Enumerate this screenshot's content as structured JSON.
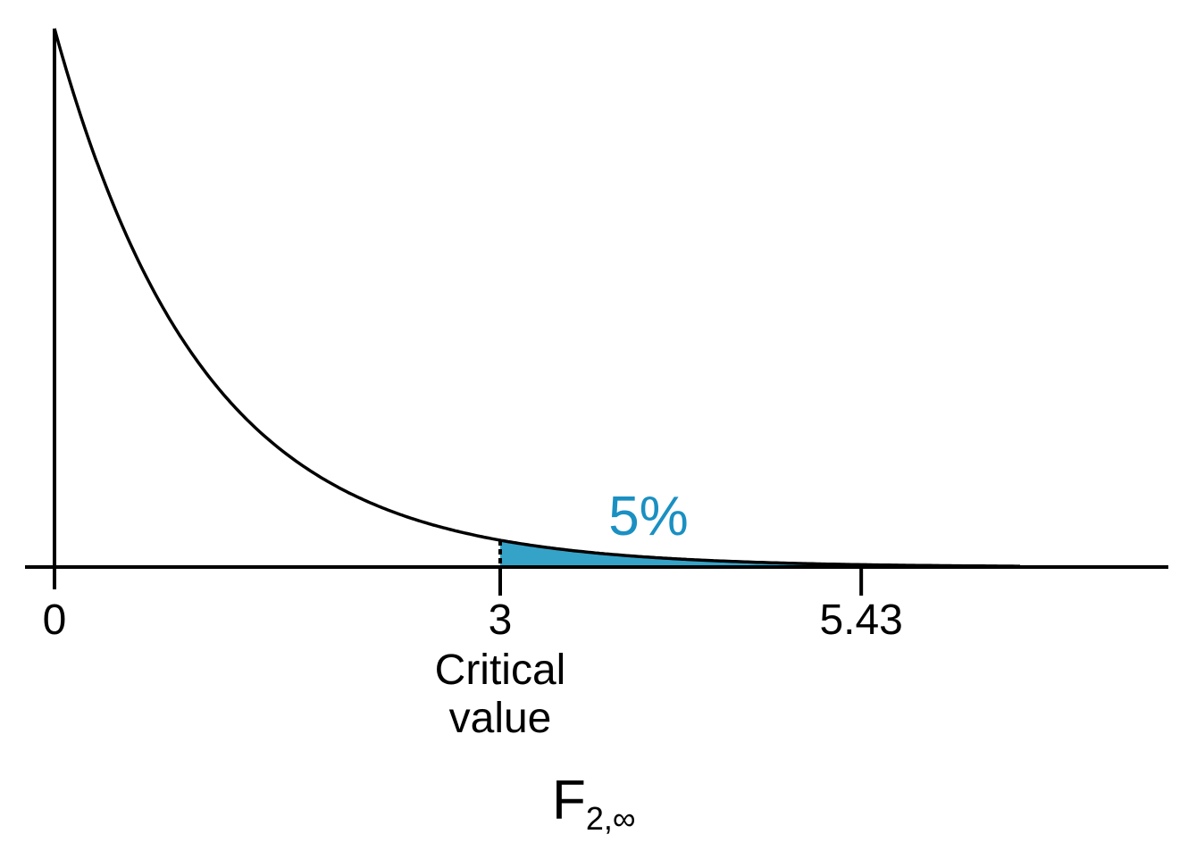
{
  "chart_data": {
    "type": "area",
    "distribution": "F density, df1 = 2, df2 = infinity",
    "xlabel_main": "F",
    "xlabel_subscript": "2,∞",
    "xlim": [
      -0.2,
      7.5
    ],
    "curve_x_range": [
      0,
      6.5
    ],
    "grid": false,
    "ticks": [
      {
        "value": 0,
        "label": "0"
      },
      {
        "value": 3,
        "label": "3"
      },
      {
        "value": 5.43,
        "label": "5.43"
      }
    ],
    "critical_value": 3,
    "critical_label_lines": [
      "Critical",
      "value"
    ],
    "shaded_region": {
      "from": 3,
      "to": 6.5,
      "label": "5%"
    },
    "colors": {
      "curve": "#000000",
      "shade": "#35A3C8",
      "shade_label": "#1A90C2"
    }
  }
}
